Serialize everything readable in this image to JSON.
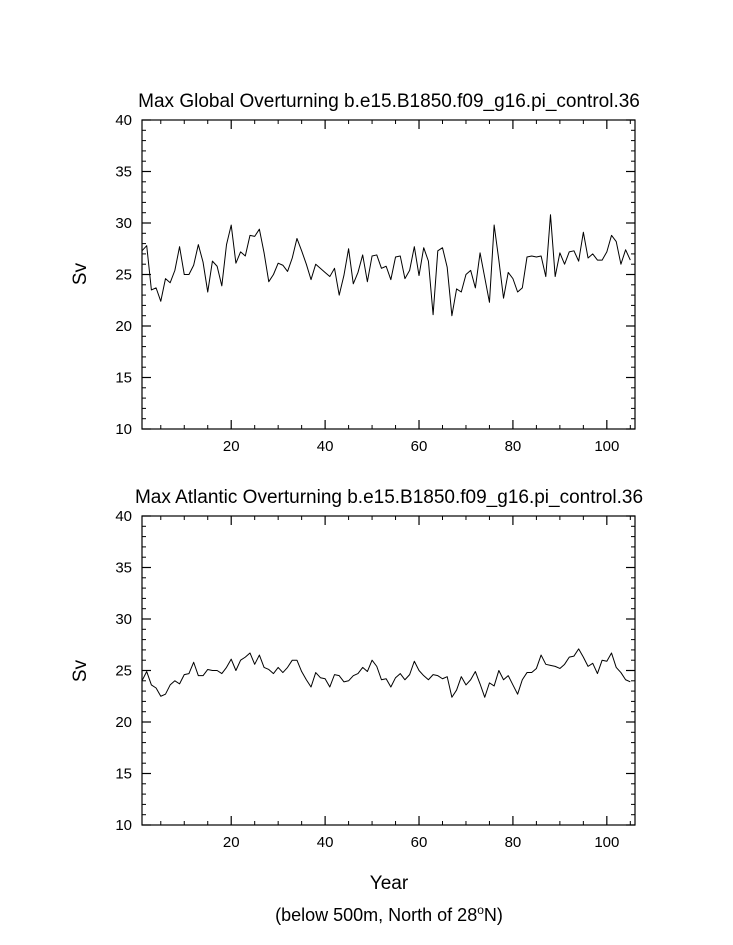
{
  "chart_data": [
    {
      "type": "line",
      "title": "Max Global Overturning b.e15.B1850.f09_g16.pi_control.36",
      "xlabel": "",
      "ylabel": "Sv",
      "xlim": [
        1,
        106
      ],
      "ylim": [
        10,
        40
      ],
      "xticks": [
        20,
        40,
        60,
        80,
        100
      ],
      "yticks": [
        10,
        15,
        20,
        25,
        30,
        35,
        40
      ],
      "x_start": 1,
      "values": [
        27.3,
        27.8,
        23.5,
        23.7,
        22.4,
        24.6,
        24.2,
        25.4,
        27.7,
        25.0,
        25.0,
        25.9,
        27.9,
        26.2,
        23.3,
        26.3,
        25.8,
        23.9,
        27.9,
        29.8,
        26.1,
        27.2,
        26.8,
        28.8,
        28.7,
        29.4,
        27.1,
        24.3,
        25.0,
        26.1,
        25.9,
        25.3,
        26.6,
        28.5,
        27.3,
        26.0,
        24.5,
        26.0,
        25.6,
        25.2,
        24.8,
        25.6,
        23.0,
        24.9,
        27.5,
        24.1,
        25.2,
        26.9,
        24.3,
        26.8,
        26.9,
        25.6,
        25.8,
        24.5,
        26.7,
        26.8,
        24.6,
        25.4,
        27.7,
        24.9,
        27.6,
        26.3,
        21.1,
        27.3,
        27.6,
        25.7,
        21.0,
        23.6,
        23.3,
        25.0,
        25.4,
        23.7,
        27.1,
        24.7,
        22.3,
        29.8,
        26.4,
        22.7,
        25.2,
        24.6,
        23.3,
        23.7,
        26.7,
        26.8,
        26.7,
        26.8,
        24.8,
        30.8,
        24.8,
        27.1,
        26.0,
        27.2,
        27.3,
        26.3,
        29.1,
        26.6,
        27.0,
        26.4,
        26.4,
        27.2,
        28.8,
        28.2,
        26.0,
        27.4,
        26.4
      ]
    },
    {
      "type": "line",
      "title": "Max Atlantic Overturning b.e15.B1850.f09_g16.pi_control.36",
      "xlabel": "Year",
      "ylabel": "Sv",
      "xlim": [
        1,
        106
      ],
      "ylim": [
        10,
        40
      ],
      "xticks": [
        20,
        40,
        60,
        80,
        100
      ],
      "yticks": [
        10,
        15,
        20,
        25,
        30,
        35,
        40
      ],
      "x_start": 1,
      "values": [
        24.0,
        24.9,
        23.6,
        23.3,
        22.5,
        22.7,
        23.6,
        24.0,
        23.7,
        24.6,
        24.7,
        25.8,
        24.5,
        24.5,
        25.1,
        25.0,
        25.0,
        24.7,
        25.3,
        26.1,
        25.0,
        26.0,
        26.3,
        26.7,
        25.6,
        26.5,
        25.3,
        25.1,
        24.7,
        25.3,
        24.8,
        25.3,
        26.0,
        26.0,
        24.9,
        24.1,
        23.4,
        24.8,
        24.3,
        24.2,
        23.4,
        24.6,
        24.5,
        23.9,
        24.0,
        24.5,
        24.7,
        25.3,
        24.9,
        26.0,
        25.4,
        24.1,
        24.2,
        23.4,
        24.3,
        24.7,
        24.1,
        24.6,
        25.9,
        25.0,
        24.5,
        24.1,
        24.6,
        24.5,
        24.2,
        24.4,
        22.4,
        23.1,
        24.4,
        23.6,
        24.1,
        24.9,
        23.7,
        22.4,
        23.8,
        23.5,
        25.0,
        24.1,
        24.5,
        23.6,
        22.7,
        24.1,
        24.8,
        24.8,
        25.2,
        26.5,
        25.6,
        25.5,
        25.4,
        25.2,
        25.6,
        26.3,
        26.4,
        27.1,
        26.3,
        25.4,
        25.7,
        24.7,
        26.0,
        25.9,
        26.7,
        25.3,
        24.8,
        24.1,
        23.9
      ]
    }
  ],
  "caption": {
    "main": "(below 500m, North of 28",
    "superscript": "o",
    "suffix": "N)"
  }
}
